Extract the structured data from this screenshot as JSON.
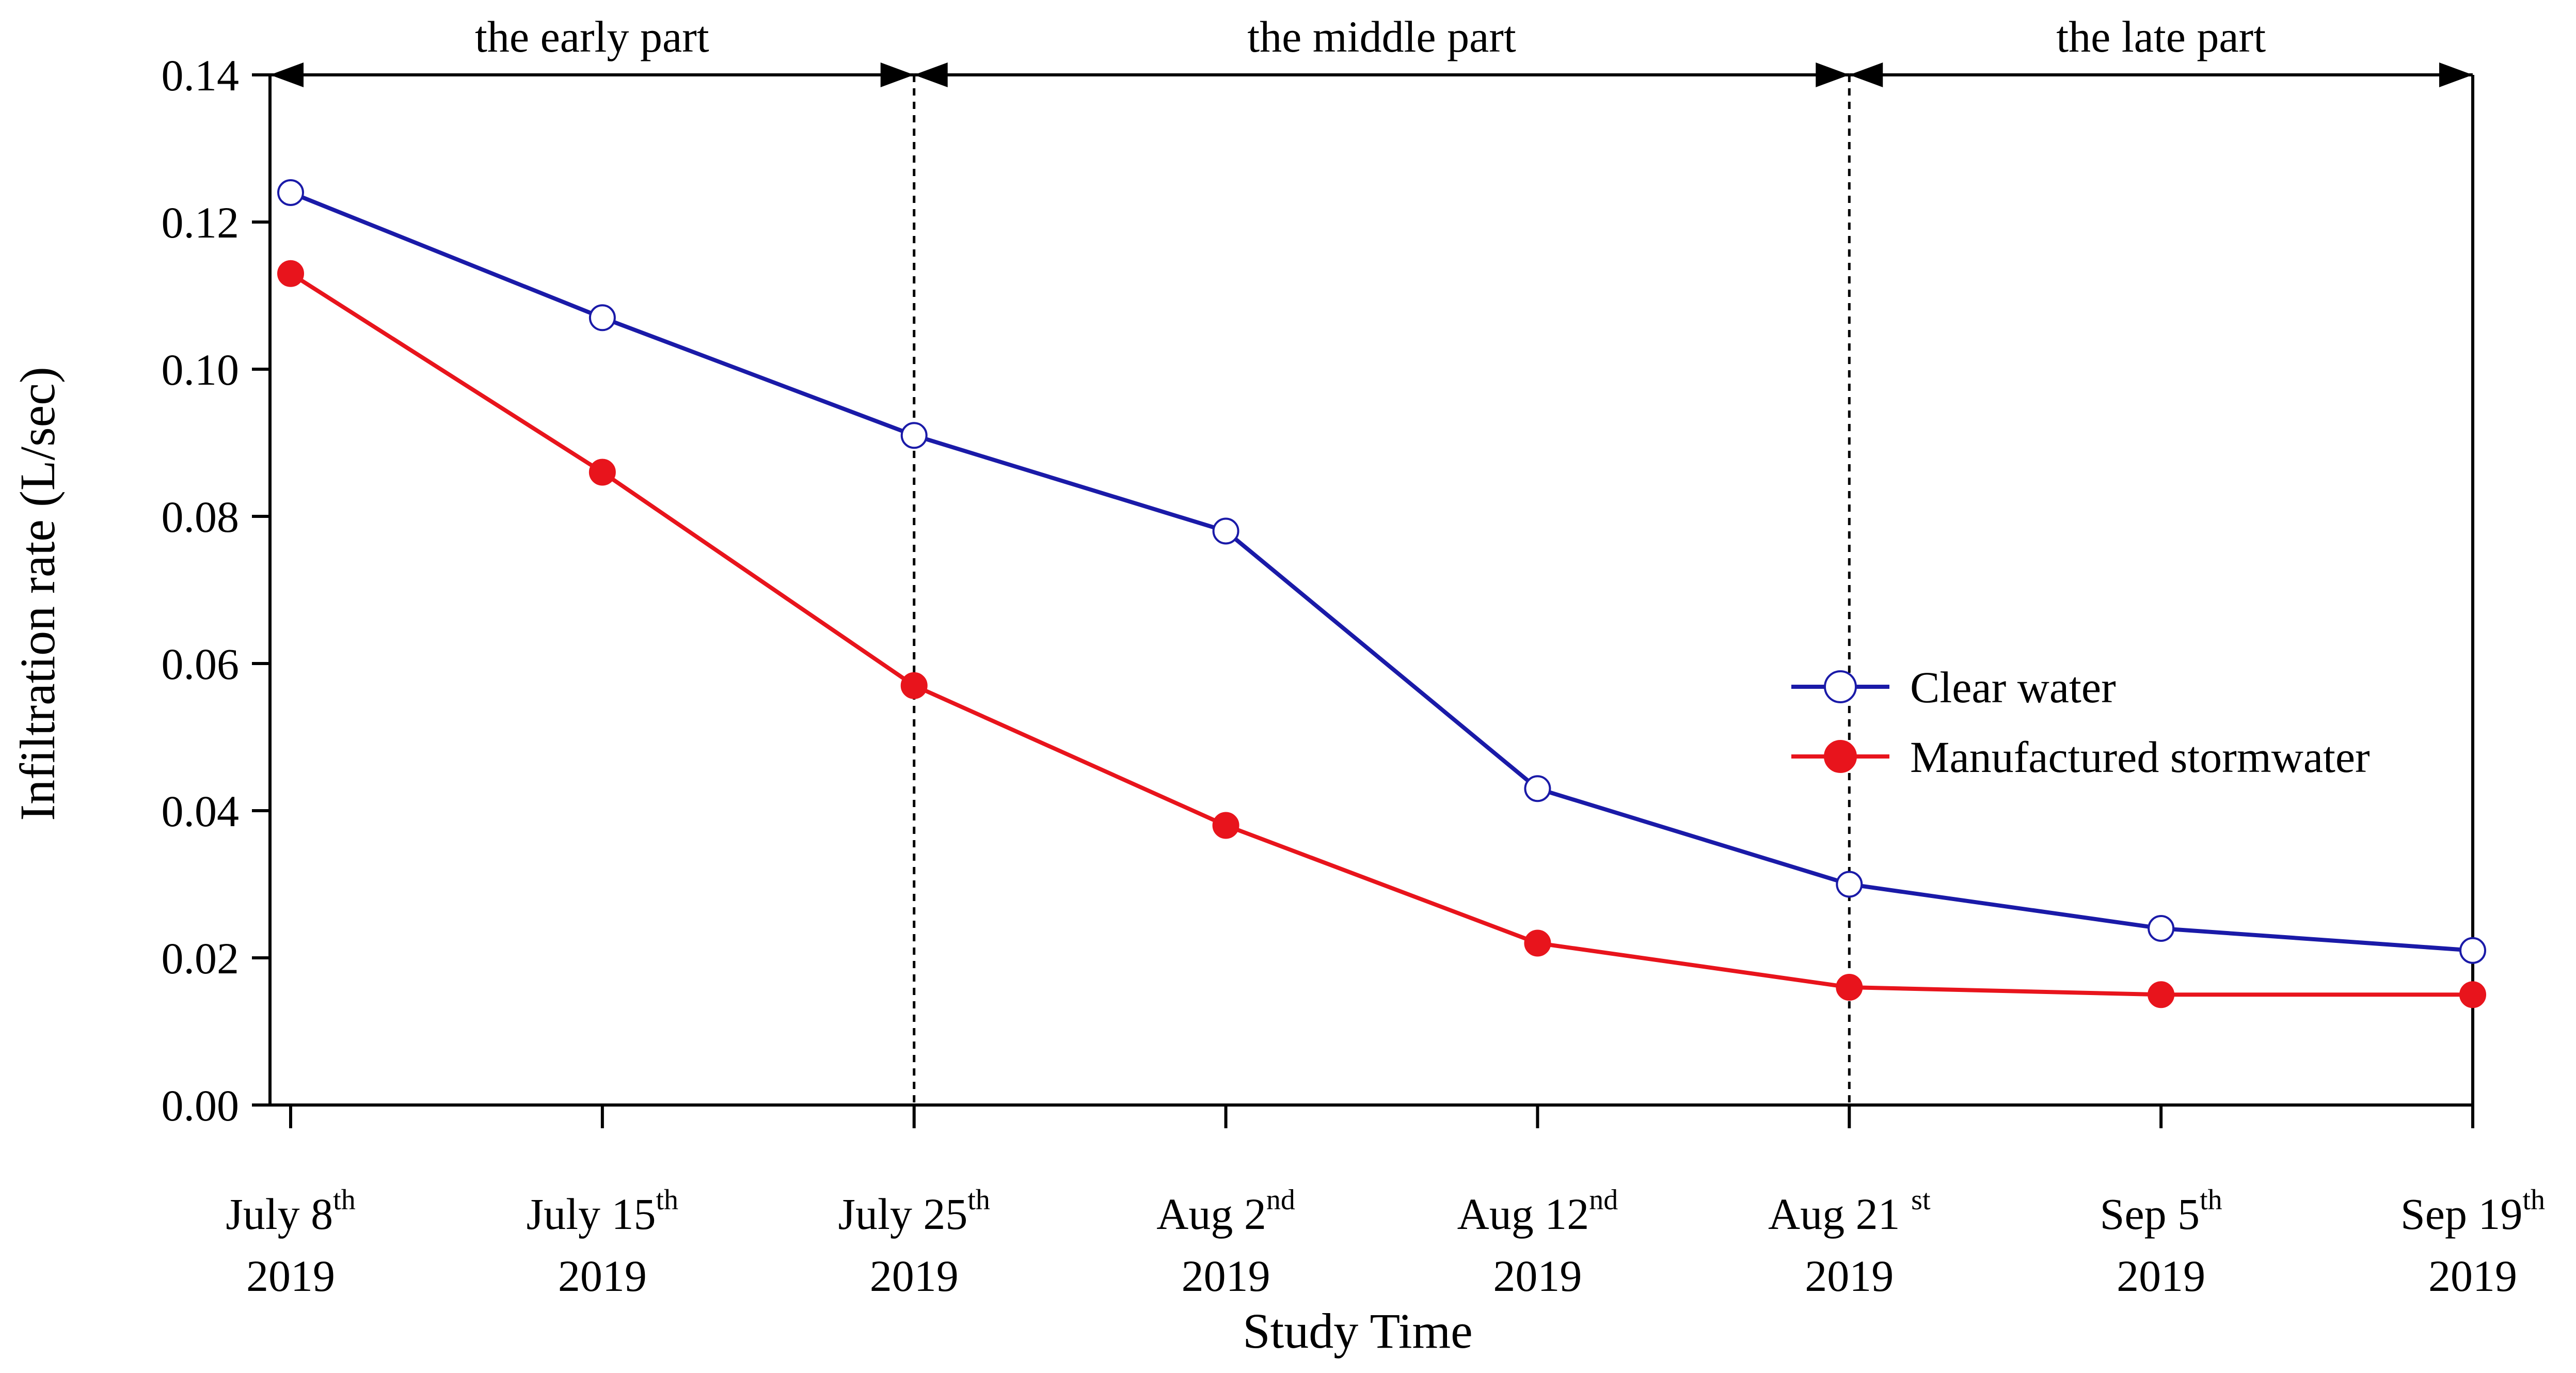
{
  "chart_data": {
    "type": "line",
    "xlabel": "Study Time",
    "ylabel": "Infiltration rate (L/sec)",
    "ylim": [
      0,
      0.14
    ],
    "yticks": [
      "0.00",
      "0.02",
      "0.04",
      "0.06",
      "0.08",
      "0.10",
      "0.12",
      "0.14"
    ],
    "categories": [
      {
        "main": "July 8",
        "sup": "th",
        "year": "2019"
      },
      {
        "main": "July 15",
        "sup": "th",
        "year": "2019"
      },
      {
        "main": "July 25",
        "sup": "th",
        "year": "2019"
      },
      {
        "main": "Aug 2",
        "sup": "nd",
        "year": "2019"
      },
      {
        "main": "Aug 12",
        "sup": "nd",
        "year": "2019"
      },
      {
        "main": "Aug 21 ",
        "sup": "st",
        "year": "2019"
      },
      {
        "main": "Sep 5",
        "sup": "th",
        "year": "2019"
      },
      {
        "main": "Sep 19",
        "sup": "th",
        "year": "2019"
      }
    ],
    "series": [
      {
        "name": "Clear water",
        "color": "#1a1aa8",
        "marker": "open-circle",
        "values": [
          0.124,
          0.107,
          0.091,
          0.078,
          0.043,
          0.03,
          0.024,
          0.021
        ]
      },
      {
        "name": "Manufactured stormwater",
        "color": "#e8141c",
        "marker": "filled-circle",
        "values": [
          0.113,
          0.086,
          0.057,
          0.038,
          0.022,
          0.016,
          0.015,
          0.015
        ]
      }
    ],
    "phases": [
      {
        "label": "the early part",
        "start_index": 0,
        "end_index": 2
      },
      {
        "label": "the middle part",
        "start_index": 2,
        "end_index": 5
      },
      {
        "label": "the late part",
        "start_index": 5,
        "end_index": 7
      }
    ],
    "divider_indices": [
      2,
      5
    ],
    "legend_position": "right, mid-height",
    "grid": false
  }
}
